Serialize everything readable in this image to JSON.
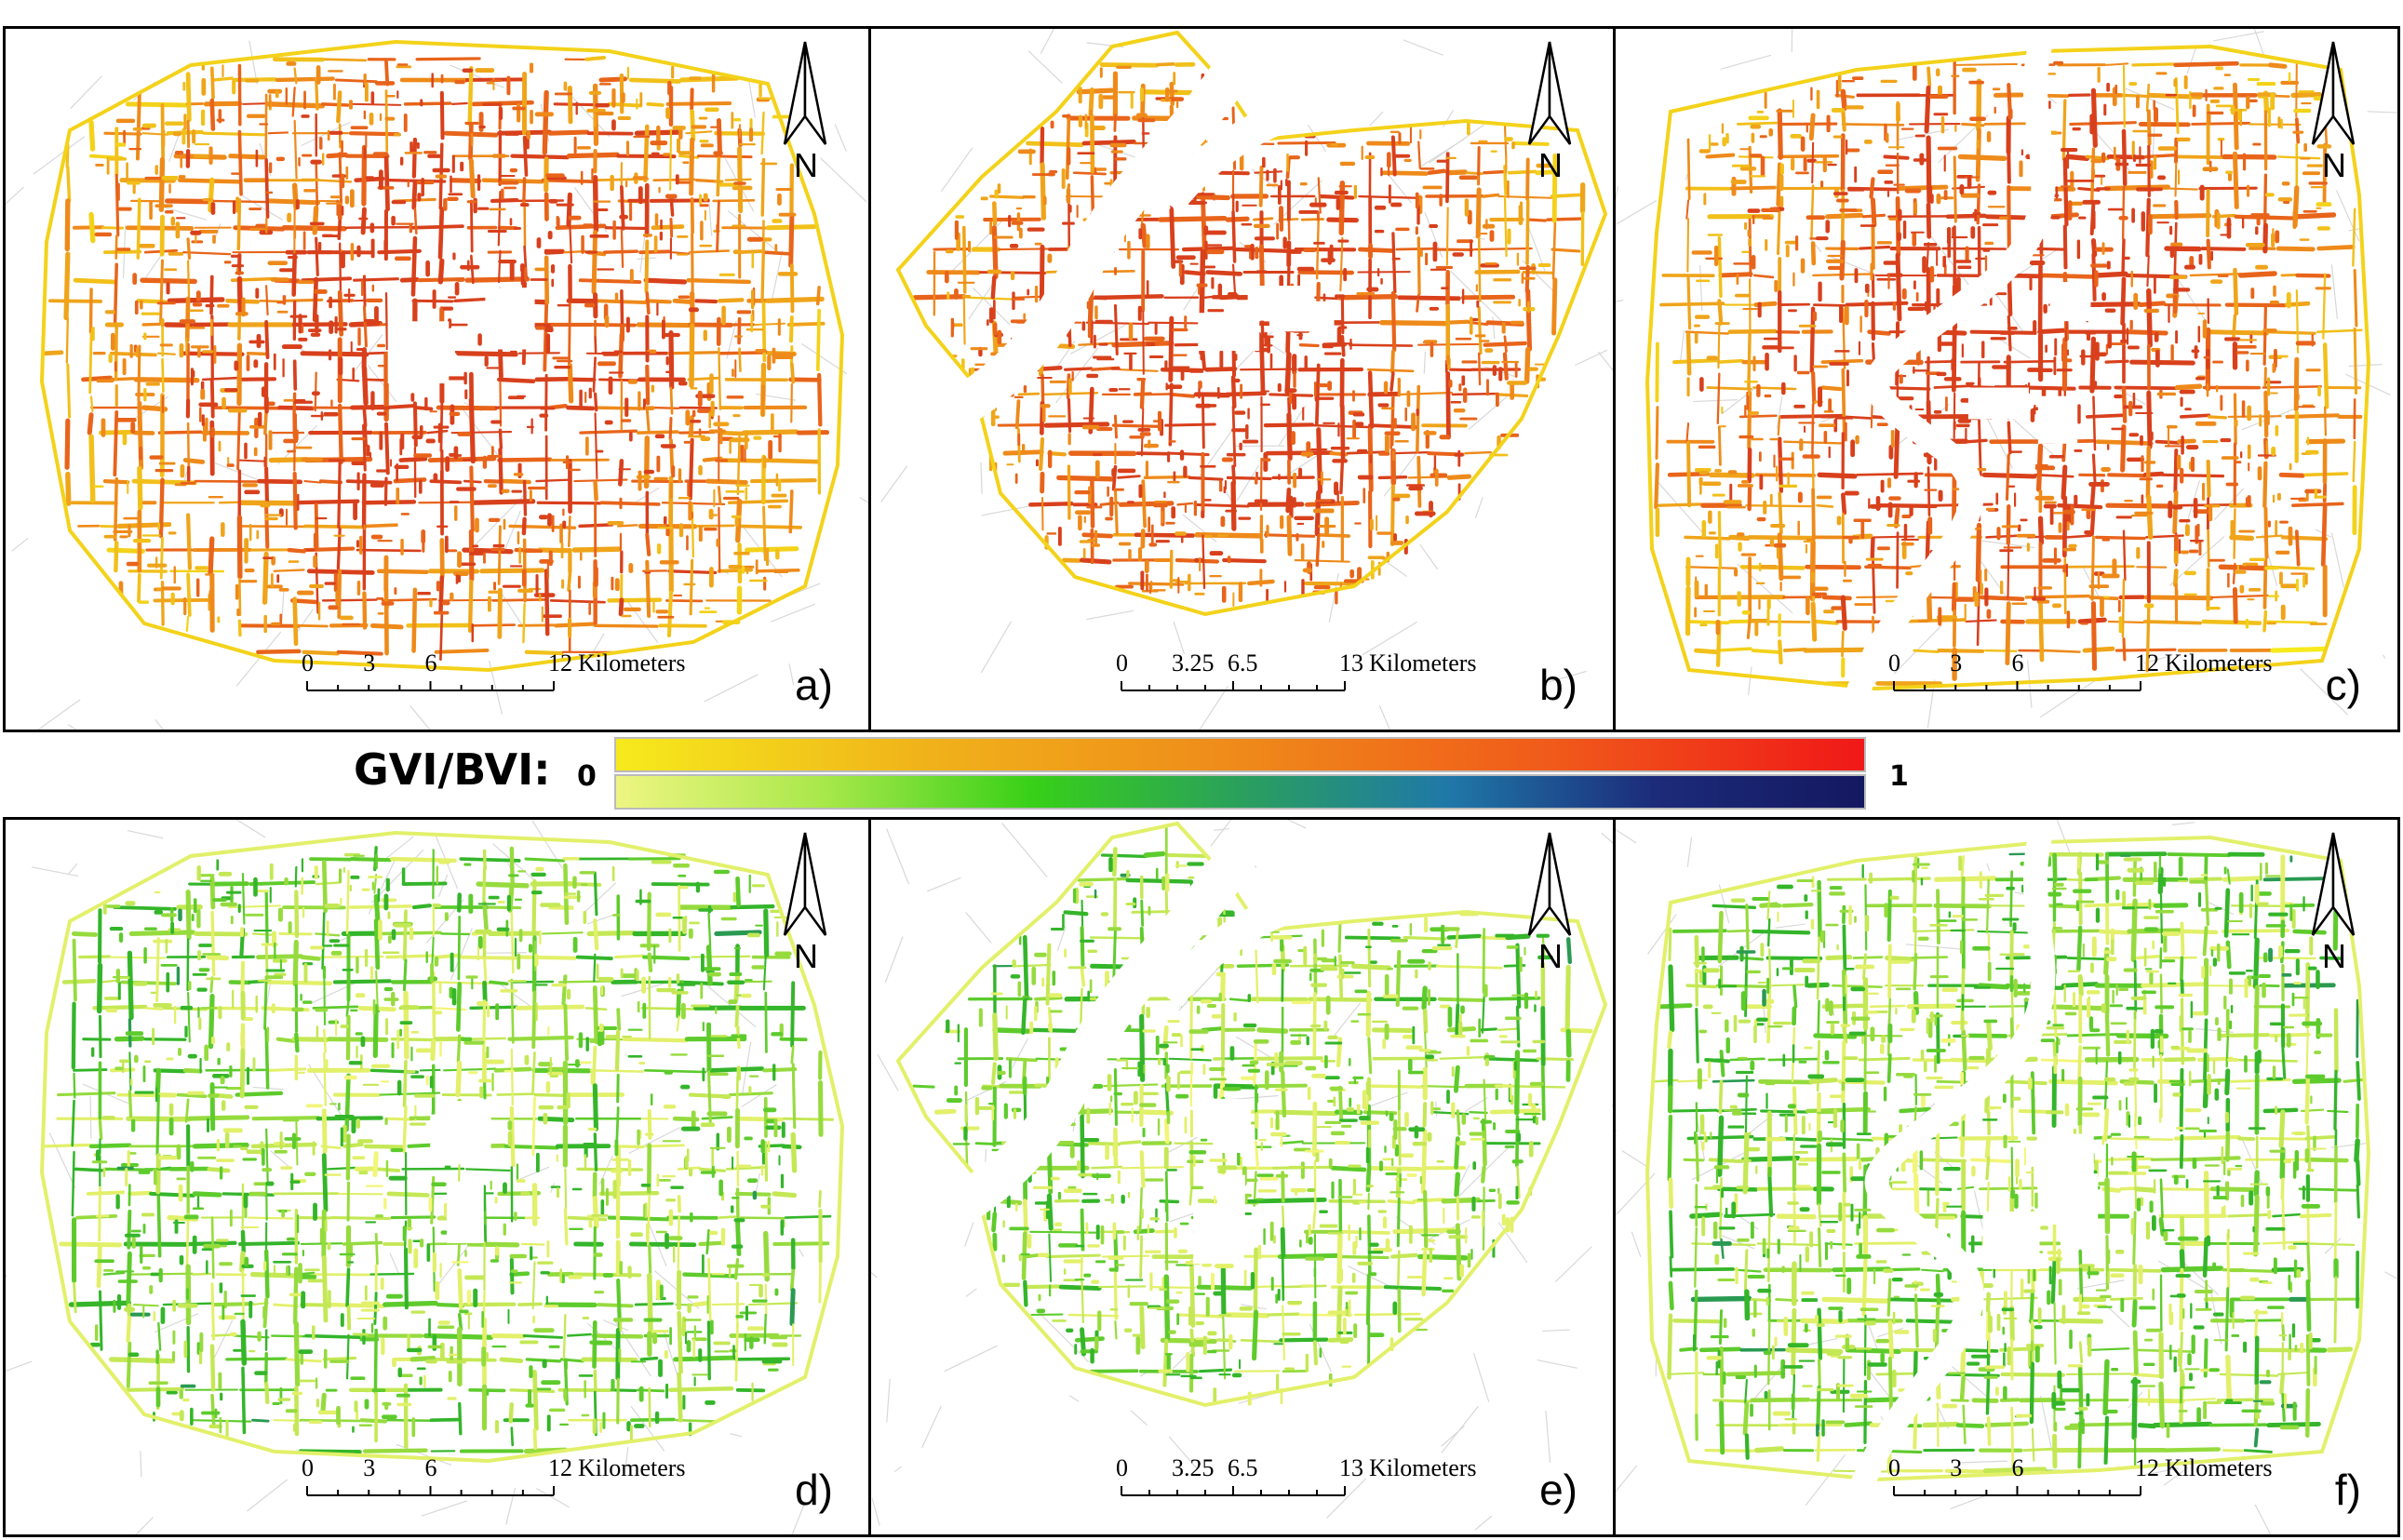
{
  "legend": {
    "title": "GVI/BVI:",
    "min_label": "0",
    "max_label": "1",
    "ramps": [
      {
        "name": "BVI",
        "colors": [
          "#f6ea1c",
          "#f0b21a",
          "#ef8a1a",
          "#f05a1a",
          "#f01818"
        ]
      },
      {
        "name": "GVI",
        "colors": [
          "#eef582",
          "#a8e84a",
          "#38d018",
          "#2aa05c",
          "#1f78a8",
          "#1c2b7a",
          "#141860"
        ]
      }
    ]
  },
  "north_arrow_letter": "N",
  "scale_unit": "Kilometers",
  "panels": [
    {
      "id": "a",
      "label": "a)",
      "scale_ticks": [
        "0",
        "3",
        "6",
        "12"
      ],
      "index": "BVI",
      "city": "city-1"
    },
    {
      "id": "b",
      "label": "b)",
      "scale_ticks": [
        "0",
        "3.25",
        "6.5",
        "13"
      ],
      "index": "BVI",
      "city": "city-2"
    },
    {
      "id": "c",
      "label": "c)",
      "scale_ticks": [
        "0",
        "3",
        "6",
        "12"
      ],
      "index": "BVI",
      "city": "city-3"
    },
    {
      "id": "d",
      "label": "d)",
      "scale_ticks": [
        "0",
        "3",
        "6",
        "12"
      ],
      "index": "GVI",
      "city": "city-1"
    },
    {
      "id": "e",
      "label": "e)",
      "scale_ticks": [
        "0",
        "3.25",
        "6.5",
        "13"
      ],
      "index": "GVI",
      "city": "city-2"
    },
    {
      "id": "f",
      "label": "f)",
      "scale_ticks": [
        "0",
        "3",
        "6",
        "12"
      ],
      "index": "GVI",
      "city": "city-3"
    }
  ],
  "colors": {
    "bvi_palette": [
      "#f6ea1c",
      "#f3d21a",
      "#f1c01a",
      "#efa41a",
      "#ee8a1a",
      "#e8641a",
      "#d8401c"
    ],
    "gvi_palette": [
      "#f3f57a",
      "#e2f06a",
      "#c4e855",
      "#96db3e",
      "#5ecb2c",
      "#34b52a",
      "#2a9a52",
      "#1f7d8a"
    ],
    "river": "#ffffff",
    "bg_roads": "#c8c8c8"
  }
}
